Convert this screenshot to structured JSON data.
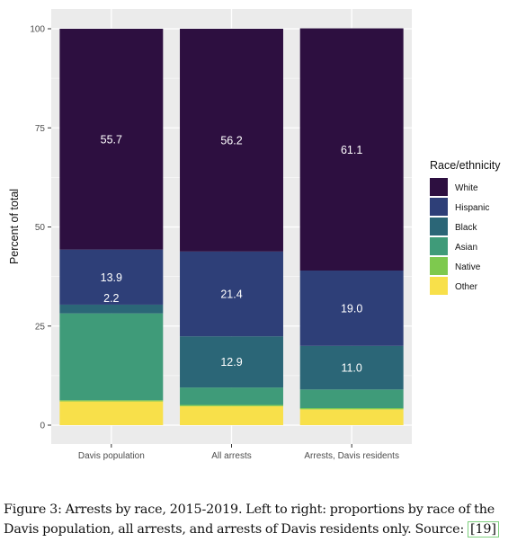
{
  "chart_data": {
    "type": "bar",
    "stacked": true,
    "ylabel": "Percent of total",
    "xlabel": "",
    "ylim": [
      0,
      100
    ],
    "y_ticks": [
      "0",
      "25",
      "50",
      "75",
      "100"
    ],
    "categories": [
      "Davis population",
      "All arrests",
      "Arrests, Davis residents"
    ],
    "series": [
      {
        "name": "Other",
        "values": [
          6.0,
          4.8,
          4.0
        ]
      },
      {
        "name": "Native",
        "values": [
          0.3,
          0.3,
          0.3
        ]
      },
      {
        "name": "Asian",
        "values": [
          21.9,
          4.4,
          4.7
        ]
      },
      {
        "name": "Black",
        "values": [
          2.2,
          12.9,
          11.0
        ]
      },
      {
        "name": "Hispanic",
        "values": [
          13.9,
          21.4,
          19.0
        ]
      },
      {
        "name": "White",
        "values": [
          55.7,
          56.2,
          61.1
        ]
      }
    ],
    "data_labels": [
      {
        "series": "White",
        "labels": [
          "55.7",
          "56.2",
          "61.1"
        ]
      },
      {
        "series": "Hispanic",
        "labels": [
          "13.9",
          "21.4",
          "19.0"
        ]
      },
      {
        "series": "Black",
        "labels": [
          "2.2",
          "12.9",
          "11.0"
        ]
      }
    ],
    "legend": {
      "title": "Race/ethnicity",
      "position": "right",
      "items": [
        "White",
        "Hispanic",
        "Black",
        "Asian",
        "Native",
        "Other"
      ]
    },
    "colors": {
      "White": "#2d0f40",
      "Hispanic": "#2e3f78",
      "Black": "#2b6677",
      "Asian": "#3f9b79",
      "Native": "#7ec94e",
      "Other": "#f8e04a",
      "panel": "#ebebeb",
      "grid": "#ffffff"
    },
    "grid": true
  },
  "caption": {
    "line1": "Figure 3: Arrests by race, 2015-2019. Left to right: proportions by race of the",
    "line2_text": "Davis population, all arrests, and arrests of Davis residents only. Source:",
    "citation": "[19]"
  }
}
